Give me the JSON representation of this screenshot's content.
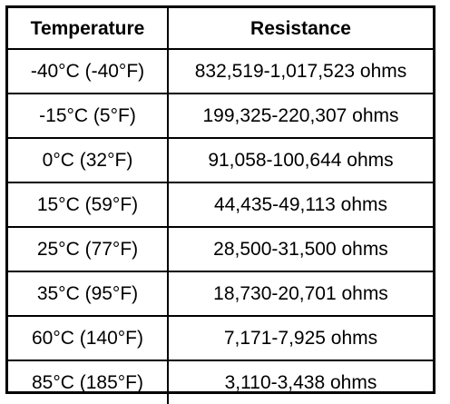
{
  "table": {
    "headers": [
      "Temperature",
      "Resistance"
    ],
    "rows": [
      [
        "-40°C (-40°F)",
        "832,519-1,017,523 ohms"
      ],
      [
        "-15°C (5°F)",
        "199,325-220,307 ohms"
      ],
      [
        "0°C (32°F)",
        "91,058-100,644 ohms"
      ],
      [
        "15°C (59°F)",
        "44,435-49,113 ohms"
      ],
      [
        "25°C (77°F)",
        "28,500-31,500 ohms"
      ],
      [
        "35°C (95°F)",
        "18,730-20,701 ohms"
      ],
      [
        "60°C (140°F)",
        "7,171-7,925 ohms"
      ],
      [
        "85°C (185°F)",
        "3,110-3,438 ohms"
      ]
    ]
  }
}
